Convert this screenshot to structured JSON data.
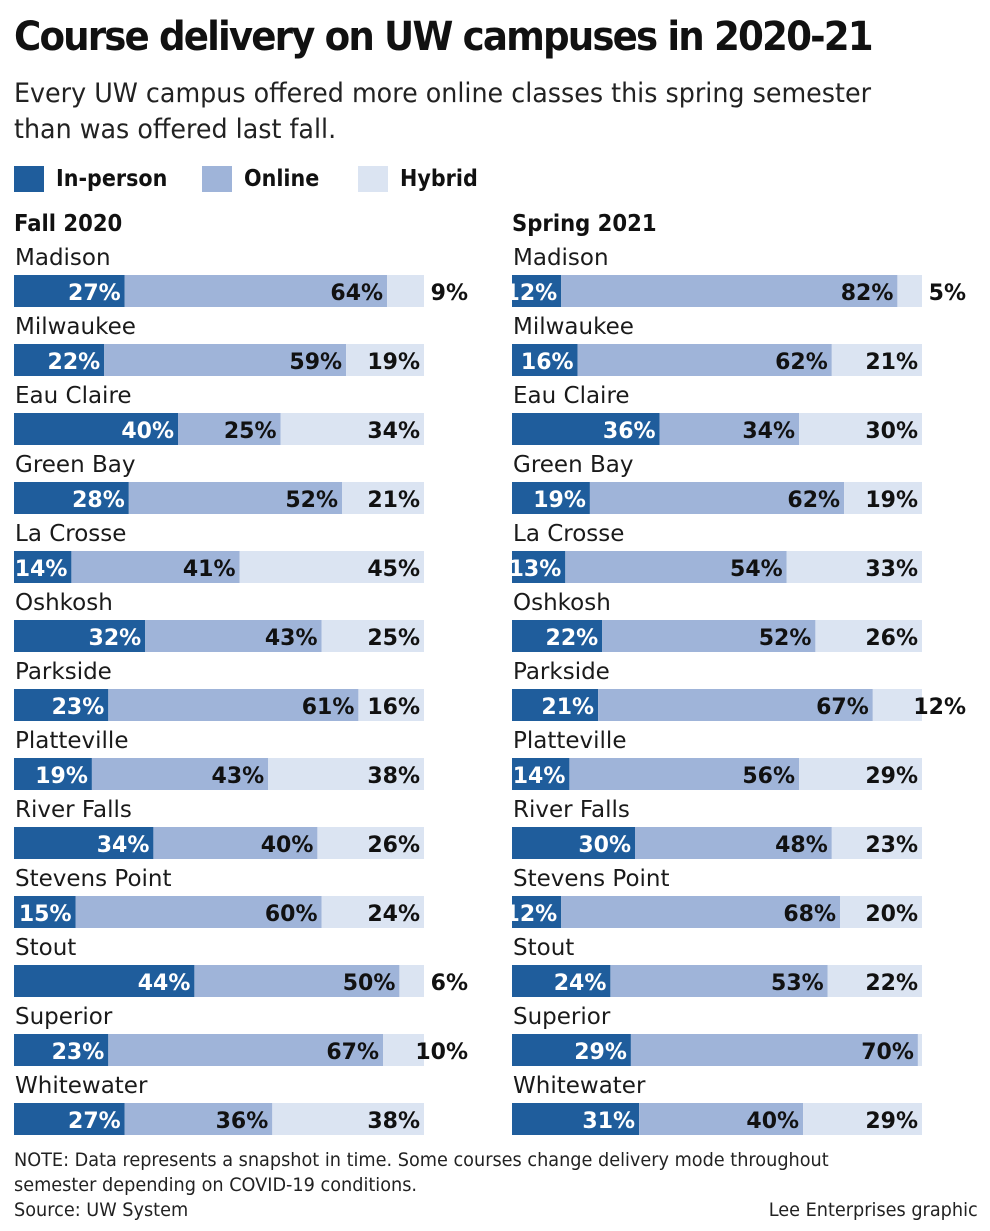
{
  "header": {
    "title": "Course delivery on UW campuses in 2020-21",
    "subtitle": "Every UW campus offered more online classes this spring semester than was offered last fall."
  },
  "legend": [
    {
      "label": "In-person",
      "color": "#1f5d9c"
    },
    {
      "label": "Online",
      "color": "#9fb4d9"
    },
    {
      "label": "Hybrid",
      "color": "#dbe4f2"
    }
  ],
  "chart_data": [
    {
      "type": "bar",
      "title": "Fall 2020",
      "stacked": true,
      "orientation": "horizontal",
      "categories": [
        "Madison",
        "Milwaukee",
        "Eau Claire",
        "Green Bay",
        "La Crosse",
        "Oshkosh",
        "Parkside",
        "Platteville",
        "River Falls",
        "Stevens Point",
        "Stout",
        "Superior",
        "Whitewater"
      ],
      "series": [
        {
          "name": "In-person",
          "values": [
            27,
            22,
            40,
            28,
            14,
            32,
            23,
            19,
            34,
            15,
            44,
            23,
            27
          ]
        },
        {
          "name": "Online",
          "values": [
            64,
            59,
            25,
            52,
            41,
            43,
            61,
            43,
            40,
            60,
            50,
            67,
            36
          ]
        },
        {
          "name": "Hybrid",
          "values": [
            9,
            19,
            34,
            21,
            45,
            25,
            16,
            38,
            26,
            24,
            6,
            10,
            38
          ]
        }
      ],
      "value_suffix": "%"
    },
    {
      "type": "bar",
      "title": "Spring 2021",
      "stacked": true,
      "orientation": "horizontal",
      "categories": [
        "Madison",
        "Milwaukee",
        "Eau Claire",
        "Green Bay",
        "La Crosse",
        "Oshkosh",
        "Parkside",
        "Platteville",
        "River Falls",
        "Stevens Point",
        "Stout",
        "Superior",
        "Whitewater"
      ],
      "series": [
        {
          "name": "In-person",
          "values": [
            12,
            16,
            36,
            19,
            13,
            22,
            21,
            14,
            30,
            12,
            24,
            29,
            31
          ]
        },
        {
          "name": "Online",
          "values": [
            82,
            62,
            34,
            62,
            54,
            52,
            67,
            56,
            48,
            68,
            53,
            70,
            40
          ]
        },
        {
          "name": "Hybrid",
          "values": [
            5,
            21,
            30,
            19,
            33,
            26,
            12,
            29,
            23,
            20,
            22,
            0,
            29
          ]
        }
      ],
      "value_suffix": "%"
    }
  ],
  "footer": {
    "note": "NOTE: Data represents a snapshot in time. Some courses change delivery mode throughout semester depending on COVID-19 conditions.",
    "source": "Source: UW System",
    "credit": "Lee Enterprises graphic"
  }
}
